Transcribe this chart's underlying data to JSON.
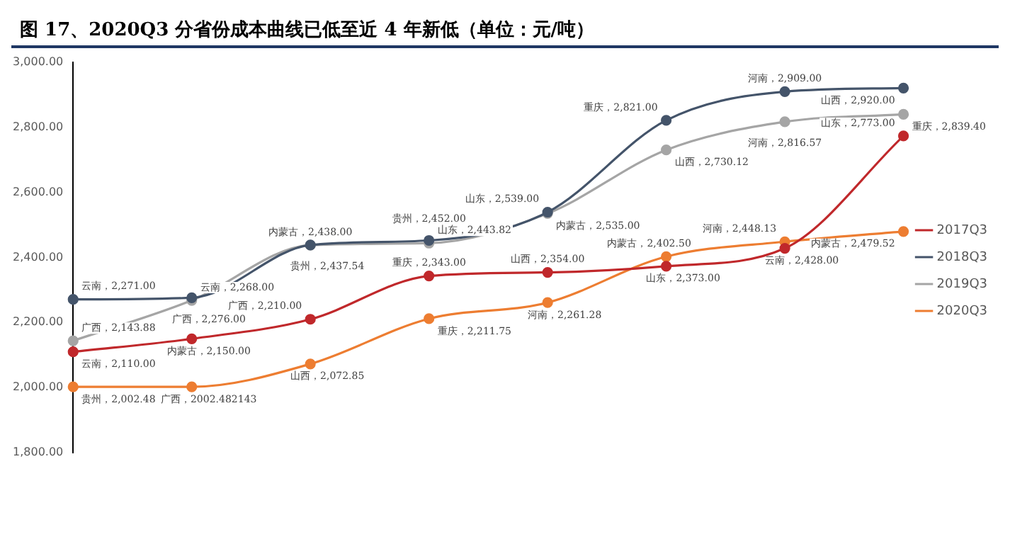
{
  "chart_data": {
    "type": "line",
    "title": "图 17、2020Q3 分省份成本曲线已低至近 4 年新低（单位：元/吨）",
    "categories": [
      null,
      null,
      null,
      null,
      null,
      null,
      null,
      null
    ],
    "ylim": [
      1800,
      3000
    ],
    "yticks": [
      {
        "value": 1800,
        "label": "1,800.00"
      },
      {
        "value": 2000,
        "label": "2,000.00"
      },
      {
        "value": 2200,
        "label": "2,200.00"
      },
      {
        "value": 2400,
        "label": "2,400.00"
      },
      {
        "value": 2600,
        "label": "2,600.00"
      },
      {
        "value": 2800,
        "label": "2,800.00"
      },
      {
        "value": 3000,
        "label": "3,000.00"
      }
    ],
    "grid": false,
    "legend": "right",
    "marker": "circle",
    "series": [
      {
        "name": "2017Q3",
        "color": "#c0282b",
        "values": [
          2110,
          2150,
          2210,
          2343,
          2354,
          2373,
          2428,
          2773
        ],
        "value_labels": [
          "云南，2,110.00",
          "内蒙古，2,150.00",
          "广西，2,210.00",
          "重庆，2,343.00",
          "山西，2,354.00",
          "山东，2,373.00",
          "云南，2,428.00",
          "山东，2,773.00"
        ]
      },
      {
        "name": "2018Q3",
        "color": "#44546a",
        "values": [
          2271,
          2276,
          2438,
          2452,
          2539,
          2821,
          2909,
          2920
        ],
        "value_labels": [
          "云南，2,271.00",
          "广西，2,276.00",
          "内蒙古，2,438.00",
          "贵州，2,452.00",
          "山东，2,539.00",
          "重庆，2,821.00",
          "河南，2,909.00",
          "山西，2,920.00"
        ]
      },
      {
        "name": "2019Q3",
        "color": "#a5a5a5",
        "values": [
          2143.88,
          2268,
          2437.54,
          2443.82,
          2535,
          2730.12,
          2816.57,
          2839.4
        ],
        "value_labels": [
          "广西，2,143.88",
          "云南，2,268.00",
          "贵州，2,437.54",
          "山东，2,443.82",
          "内蒙古，2,535.00",
          "山西，2,730.12",
          "河南，2,816.57",
          "重庆，2,839.40"
        ]
      },
      {
        "name": "2020Q3",
        "color": "#ed7d31",
        "values": [
          2002.48,
          2002.482143,
          2072.85,
          2211.75,
          2261.28,
          2402.5,
          2448.13,
          2479.52
        ],
        "value_labels": [
          "贵州，2,002.48",
          "广西，2002.482143",
          "山西，2,072.85",
          "重庆，2,211.75",
          "河南，2,261.28",
          "内蒙古，2,402.50",
          "河南，2,448.13",
          "内蒙古，2,479.52"
        ]
      }
    ]
  }
}
